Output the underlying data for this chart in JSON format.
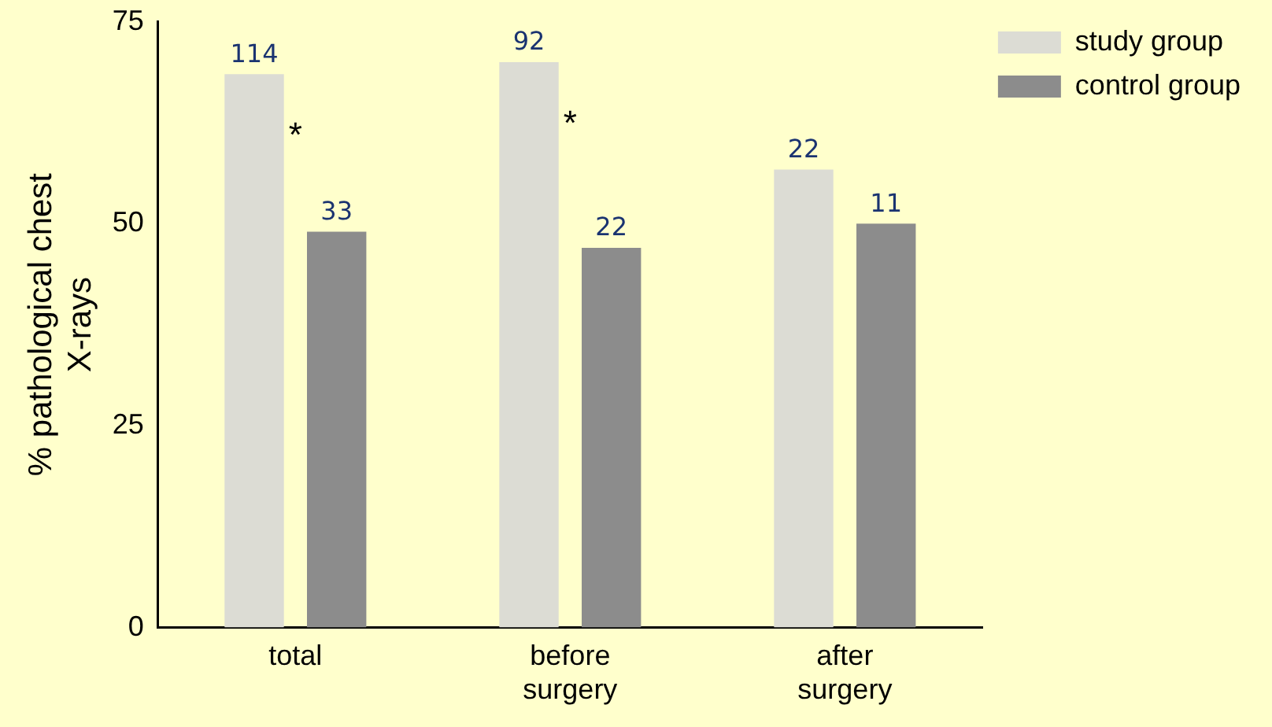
{
  "chart_data": {
    "type": "bar",
    "ylabel": "% pathological chest X-rays",
    "categories": [
      "total",
      "before surgery",
      "after surgery"
    ],
    "series": [
      {
        "name": "study group",
        "color": "#dcdcd4",
        "values": [
          68.5,
          70,
          56.7
        ]
      },
      {
        "name": "control group",
        "color": "#8c8c8c",
        "values": [
          49,
          47,
          50
        ]
      }
    ],
    "ylim": [
      0,
      75
    ],
    "yticks": [
      0,
      25,
      50,
      75
    ],
    "grid": false,
    "legend": "top right",
    "annotations": [
      "114",
      "33",
      "92",
      "22",
      "22",
      "11",
      "*",
      "*"
    ]
  }
}
